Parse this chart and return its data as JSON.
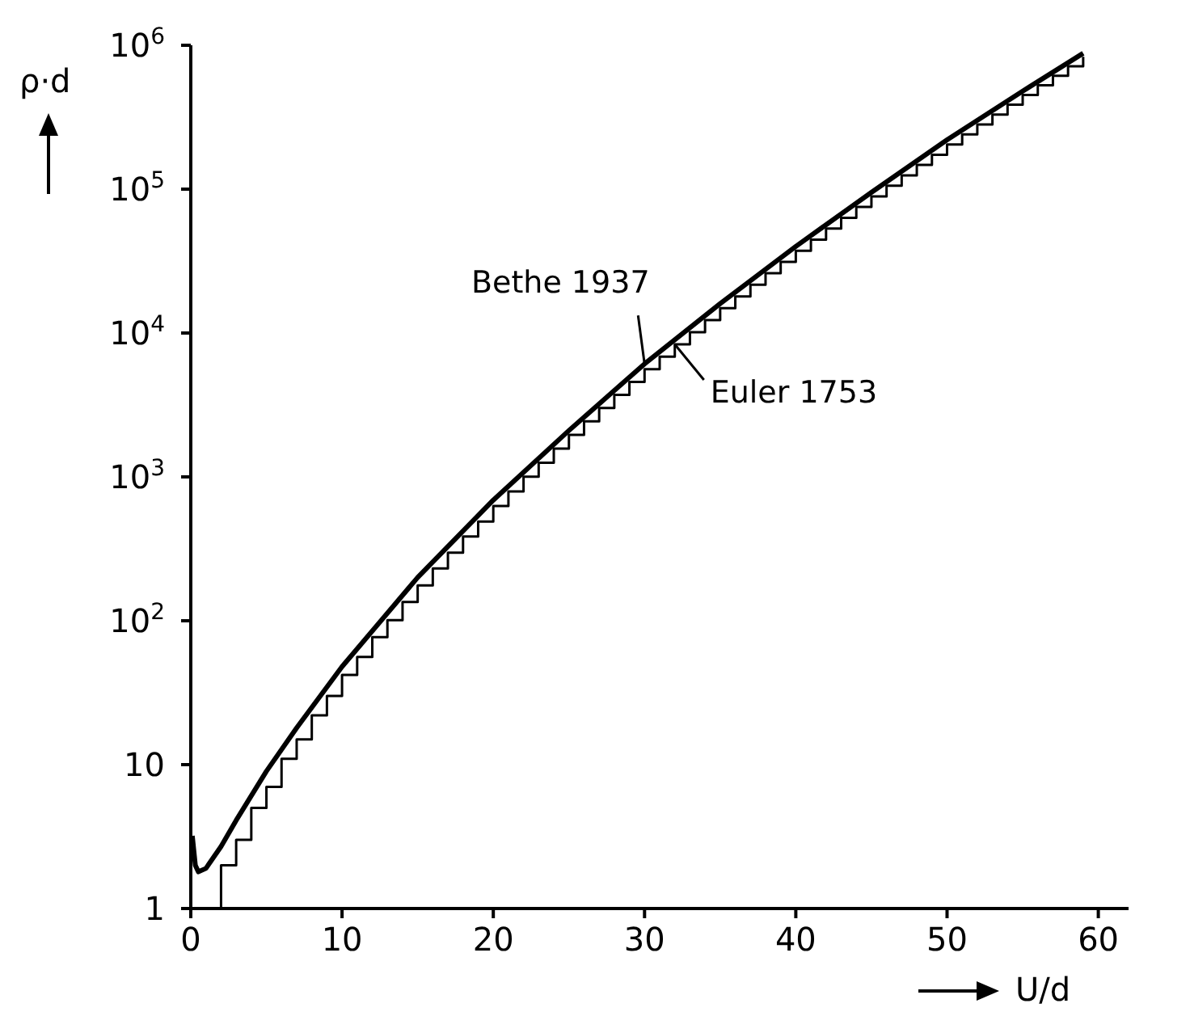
{
  "chart_data": {
    "type": "line",
    "xlabel": "U/d",
    "ylabel": "ρ·d",
    "log": "y",
    "xlim": [
      0,
      62
    ],
    "xticks": [
      0,
      10,
      20,
      30,
      40,
      50,
      60
    ],
    "ylim": [
      1,
      1000000
    ],
    "yticks": [
      1,
      10,
      {
        "value": 100,
        "label": "10$^{2}$"
      },
      {
        "value": 1000,
        "label": "10$^{3}$"
      },
      {
        "value": 10000,
        "label": "10$^{4}$"
      },
      {
        "value": 100000,
        "label": "10$^{5}$"
      },
      {
        "value": 1000000,
        "label": "10$^{6}$"
      }
    ],
    "grid": false,
    "marker": "none",
    "series": [
      {
        "name": "Bethe 1937",
        "type": "line",
        "color": "#000000",
        "x": [
          0.1,
          0.3,
          0.5,
          1,
          2,
          3,
          5,
          7,
          10,
          15,
          20,
          25,
          30,
          35,
          40,
          45,
          50,
          55,
          59
        ],
        "values": [
          3.2,
          2.0,
          1.8,
          1.9,
          2.7,
          4.1,
          9,
          18,
          48,
          200,
          690,
          2100,
          6100,
          16000,
          40000,
          95000,
          220000,
          480000,
          880000
        ]
      },
      {
        "name": "Euler 1753",
        "type": "step",
        "color": "#000000",
        "x": [
          0,
          1,
          2,
          3,
          4,
          5,
          6,
          7,
          8,
          9,
          10,
          11,
          12,
          13,
          14,
          15,
          16,
          17,
          18,
          19,
          20,
          21,
          22,
          23,
          24,
          25,
          26,
          27,
          28,
          29,
          30,
          31,
          32,
          33,
          34,
          35,
          36,
          37,
          38,
          39,
          40,
          41,
          42,
          43,
          44,
          45,
          46,
          47,
          48,
          49,
          50,
          51,
          52,
          53,
          54,
          55,
          56,
          57,
          58,
          59
        ],
        "values": [
          1,
          1,
          2,
          3,
          5,
          7,
          11,
          15,
          22,
          30,
          42,
          56,
          77,
          101,
          135,
          176,
          231,
          297,
          385,
          490,
          627,
          792,
          1002,
          1255,
          1575,
          1958,
          2436,
          3010,
          3718,
          4565,
          5604,
          6842,
          8349,
          10143,
          12310,
          14883,
          17977,
          21637,
          26015,
          31185,
          37338,
          44583,
          53174,
          63261,
          75175,
          89134,
          105558,
          124754,
          147273,
          173525,
          204226,
          239943,
          281589,
          329931,
          386155,
          451276,
          526823,
          614154,
          715220,
          831820
        ]
      }
    ]
  }
}
